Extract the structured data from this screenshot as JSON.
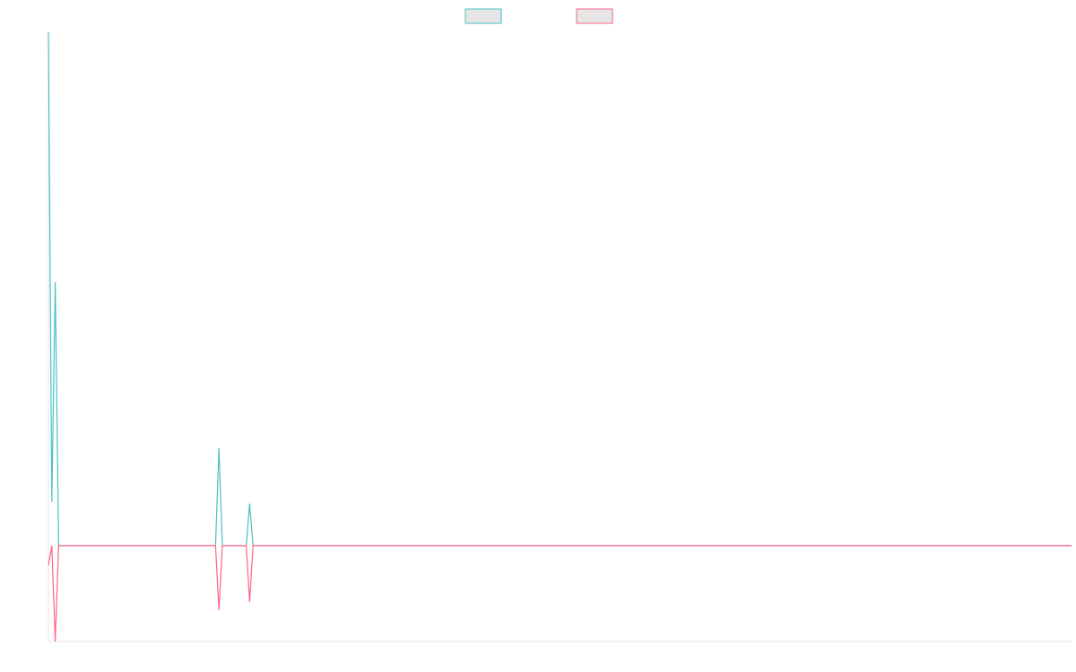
{
  "chart_data": {
    "type": "line",
    "x": [
      0,
      1,
      2,
      3,
      22,
      44,
      49,
      50,
      51,
      58,
      59,
      60,
      300
    ],
    "xlim": [
      0,
      300
    ],
    "ylim": [
      -107,
      573
    ],
    "series": [
      {
        "color": "#4bc0c0",
        "values": [
          573,
          49,
          294,
          0,
          0,
          0,
          0,
          109,
          0,
          0,
          47,
          0,
          0
        ]
      },
      {
        "color": "#ff6384",
        "values": [
          -22,
          0,
          -107,
          0,
          0,
          0,
          0,
          -72,
          0,
          0,
          -63,
          0,
          0
        ]
      }
    ],
    "legend": "top"
  }
}
